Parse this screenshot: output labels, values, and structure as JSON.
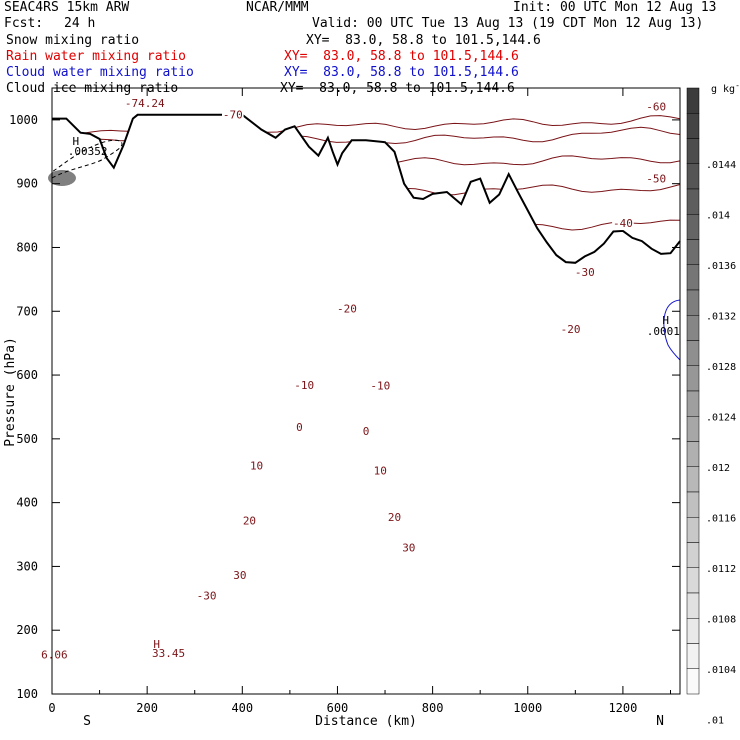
{
  "header": {
    "title": "SEAC4RS 15km ARW",
    "fcst_label": "Fcst:",
    "fcst_value": "24 h",
    "org": "NCAR/MMM",
    "init": "Init: 00 UTC Mon 12 Aug 13",
    "valid": "Valid: 00 UTC Tue 13 Aug 13 (19 CDT Mon 12 Aug 13)",
    "rows": [
      {
        "label": "Snow mixing ratio",
        "xy": "XY=  83.0, 58.8 to 101.5,144.6",
        "color": "#000000"
      },
      {
        "label": "Rain water mixing ratio",
        "xy": "XY=  83.0, 58.8 to 101.5,144.6",
        "color": "#e00000"
      },
      {
        "label": "Cloud water mixing ratio",
        "xy": "XY=  83.0, 58.8 to 101.5,144.6",
        "color": "#1010cc"
      },
      {
        "label": "Cloud ice mixing ratio",
        "xy": "XY=  83.0, 58.8 to 101.5,144.6",
        "color": "#000000"
      }
    ]
  },
  "chart_data": {
    "type": "contour-cross-section",
    "xlabel": "Distance (km)",
    "ylabel": "Pressure (hPa)",
    "xlim": [
      0,
      1320
    ],
    "ylim": [
      1050,
      100
    ],
    "x_ticks": [
      0,
      200,
      400,
      600,
      800,
      1000,
      1200
    ],
    "y_ticks": [
      200,
      300,
      400,
      500,
      600,
      700,
      800,
      900,
      1000
    ],
    "y_tick_top": "100",
    "endpoints": {
      "left": "S",
      "right": "N"
    },
    "colors": {
      "temperature": "#7a1418",
      "cloud_water": "#1a1acc",
      "terrain": "#000000"
    },
    "temperature_isotherms_c": [
      {
        "t": -70,
        "y": [
          130,
          128,
          124,
          120
        ]
      },
      {
        "t": -60,
        "y": [
          142,
          141,
          139,
          131
        ]
      },
      {
        "t": -50,
        "y": [
          168,
          166,
          162,
          158
        ]
      },
      {
        "t": -40,
        "y": [
          192,
          192,
          190,
          188
        ]
      },
      {
        "t": -30,
        "y": [
          225,
          228,
          226,
          224
        ]
      },
      {
        "t": -20,
        "y": [
          263,
          268,
          270,
          270
        ]
      },
      {
        "t": -10,
        "y": [
          304,
          312,
          316,
          318
        ]
      },
      {
        "t": 0,
        "y": [
          366,
          372,
          378,
          382
        ]
      },
      {
        "t": 10,
        "y": [
          430,
          437,
          443,
          446
        ]
      },
      {
        "t": 20,
        "y": [
          520,
          525,
          526,
          516
        ]
      },
      {
        "t": 30,
        "y": [
          610,
          620,
          608,
          590
        ]
      }
    ],
    "temperature_labels": [
      {
        "text": "-74.24",
        "x": 195,
        "p": 130
      },
      {
        "text": "-70",
        "x": 380,
        "p": 148
      },
      {
        "text": "-60",
        "x": 1270,
        "p": 135
      },
      {
        "text": "-50",
        "x": 1270,
        "p": 248
      },
      {
        "text": "-40",
        "x": 1200,
        "p": 318
      },
      {
        "text": "-30",
        "x": 1120,
        "p": 395
      },
      {
        "text": "-20",
        "x": 620,
        "p": 452
      },
      {
        "text": "-20",
        "x": 1090,
        "p": 484
      },
      {
        "text": "-10",
        "x": 530,
        "p": 572
      },
      {
        "text": "-10",
        "x": 690,
        "p": 573
      },
      {
        "text": "0",
        "x": 520,
        "p": 638
      },
      {
        "text": "0",
        "x": 660,
        "p": 644
      },
      {
        "text": "10",
        "x": 430,
        "p": 698
      },
      {
        "text": "10",
        "x": 690,
        "p": 706
      },
      {
        "text": "20",
        "x": 415,
        "p": 784
      },
      {
        "text": "20",
        "x": 720,
        "p": 779
      },
      {
        "text": "30",
        "x": 750,
        "p": 827
      },
      {
        "text": "30",
        "x": 395,
        "p": 870
      },
      {
        "text": "-30",
        "x": 325,
        "p": 902
      }
    ],
    "extrema_labels": [
      {
        "text": "H",
        "x": 50,
        "p": 189
      },
      {
        "text": ".00352",
        "x": 75,
        "p": 205
      },
      {
        "text": "H",
        "x": 1290,
        "p": 470
      },
      {
        "text": ".0001",
        "x": 1285,
        "p": 487
      },
      {
        "text": "H",
        "x": 220,
        "p": 978
      },
      {
        "text": "33.45",
        "x": 245,
        "p": 992
      },
      {
        "text": "6.06",
        "x": 5,
        "p": 994
      }
    ],
    "terrain_surface": {
      "x": [
        0,
        30,
        60,
        80,
        100,
        115,
        130,
        150,
        170,
        180,
        200,
        230,
        300,
        350,
        400,
        440,
        470,
        490,
        510,
        540,
        560,
        580,
        590,
        600,
        610,
        630,
        660,
        700,
        720,
        740,
        760,
        780,
        800,
        830,
        860,
        880,
        900,
        920,
        940,
        960,
        980,
        1000,
        1020,
        1040,
        1060,
        1080,
        1100,
        1120,
        1140,
        1160,
        1180,
        1200,
        1220,
        1240,
        1260,
        1280,
        1300,
        1320
      ],
      "p": [
        1002,
        1002,
        980,
        978,
        970,
        940,
        925,
        960,
        1002,
        1008,
        1008,
        1008,
        1008,
        1008,
        1008,
        985,
        972,
        985,
        990,
        958,
        944,
        972,
        950,
        930,
        948,
        968,
        968,
        965,
        950,
        900,
        878,
        876,
        884,
        887,
        868,
        903,
        908,
        870,
        883,
        915,
        886,
        858,
        830,
        808,
        788,
        777,
        776,
        786,
        793,
        806,
        825,
        826,
        815,
        810,
        798,
        790,
        791,
        810
      ]
    },
    "colorbar": {
      "unit": "g kg",
      "unit_exponent": "-1",
      "tick_labels": [
        ".0144",
        ".014",
        ".0136",
        ".0132",
        ".0128",
        ".0124",
        ".012",
        ".0116",
        ".0112",
        ".0108",
        ".0104",
        ".01"
      ],
      "bins": 24
    }
  }
}
